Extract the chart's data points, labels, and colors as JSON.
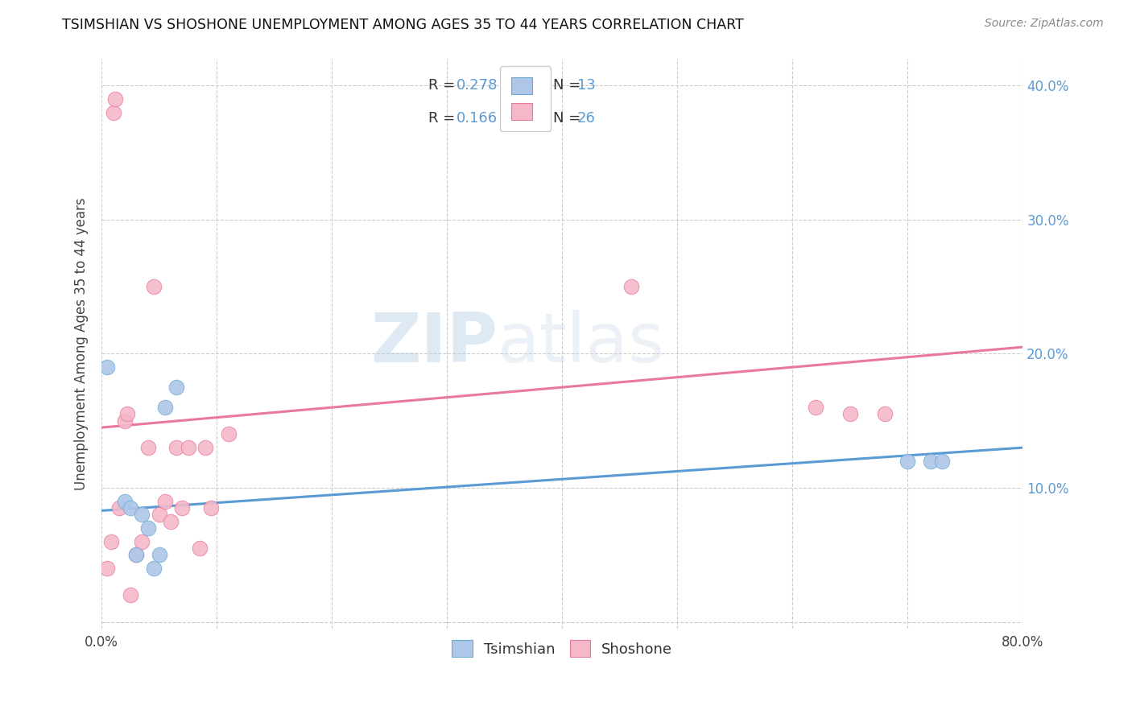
{
  "title": "TSIMSHIAN VS SHOSHONE UNEMPLOYMENT AMONG AGES 35 TO 44 YEARS CORRELATION CHART",
  "source": "Source: ZipAtlas.com",
  "ylabel": "Unemployment Among Ages 35 to 44 years",
  "xlim": [
    0,
    0.8
  ],
  "ylim": [
    -0.005,
    0.42
  ],
  "xticks": [
    0.0,
    0.1,
    0.2,
    0.3,
    0.4,
    0.5,
    0.6,
    0.7,
    0.8
  ],
  "yticks": [
    0.0,
    0.1,
    0.2,
    0.3,
    0.4
  ],
  "legend_r1": "0.278",
  "legend_n1": "13",
  "legend_r2": "0.166",
  "legend_n2": "26",
  "tsimshian_color": "#aec6e8",
  "shoshone_color": "#f5b8c8",
  "tsimshian_edge_color": "#6aabd2",
  "shoshone_edge_color": "#e8799a",
  "tsimshian_line_color": "#5b9bd5",
  "shoshone_line_color": "#e8799a",
  "watermark_zip": "ZIP",
  "watermark_atlas": "atlas",
  "tsimshian_x": [
    0.005,
    0.02,
    0.025,
    0.03,
    0.035,
    0.04,
    0.045,
    0.05,
    0.055,
    0.065,
    0.7,
    0.72,
    0.73
  ],
  "tsimshian_y": [
    0.19,
    0.09,
    0.085,
    0.05,
    0.08,
    0.07,
    0.04,
    0.05,
    0.16,
    0.175,
    0.12,
    0.12,
    0.12
  ],
  "shoshone_x": [
    0.005,
    0.008,
    0.01,
    0.012,
    0.015,
    0.02,
    0.022,
    0.025,
    0.03,
    0.035,
    0.04,
    0.045,
    0.05,
    0.055,
    0.06,
    0.065,
    0.07,
    0.075,
    0.085,
    0.09,
    0.095,
    0.11,
    0.46,
    0.62,
    0.65,
    0.68
  ],
  "shoshone_y": [
    0.04,
    0.06,
    0.38,
    0.39,
    0.085,
    0.15,
    0.155,
    0.02,
    0.05,
    0.06,
    0.13,
    0.25,
    0.08,
    0.09,
    0.075,
    0.13,
    0.085,
    0.13,
    0.055,
    0.13,
    0.085,
    0.14,
    0.25,
    0.16,
    0.155,
    0.155
  ],
  "tsimshian_trend_x": [
    0.0,
    0.8
  ],
  "tsimshian_trend_y": [
    0.083,
    0.13
  ],
  "shoshone_trend_x": [
    0.0,
    0.8
  ],
  "shoshone_trend_y": [
    0.145,
    0.205
  ]
}
